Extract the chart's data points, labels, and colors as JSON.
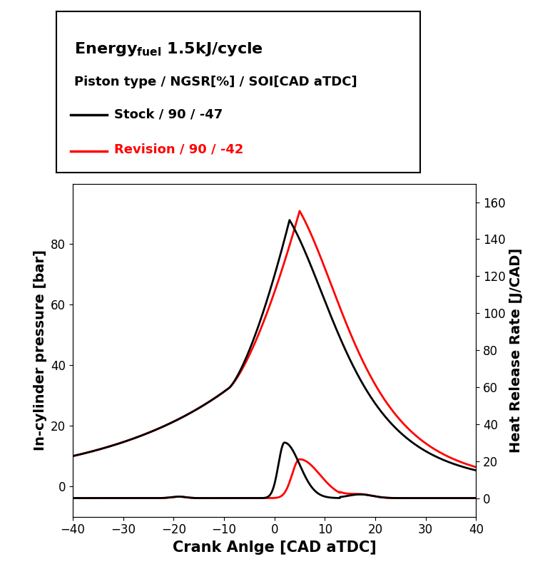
{
  "legend_stock": "Stock / 90 / -47",
  "legend_revision": "Revision / 90 / -42",
  "xlabel": "Crank Anlge [CAD aTDC]",
  "ylabel_left": "In-cylinder pressure [bar]",
  "ylabel_right": "Heat Release Rate [J/CAD]",
  "xlim": [
    -40,
    40
  ],
  "ylim_left": [
    -10,
    100
  ],
  "ylim_right": [
    -10,
    170
  ],
  "xticks": [
    -40,
    -30,
    -20,
    -10,
    0,
    10,
    20,
    30,
    40
  ],
  "yticks_left": [
    0,
    20,
    40,
    60,
    80
  ],
  "yticks_right": [
    0,
    20,
    40,
    60,
    80,
    100,
    120,
    140,
    160
  ],
  "color_stock": "#000000",
  "color_revision": "#ff0000",
  "linewidth": 2.0
}
